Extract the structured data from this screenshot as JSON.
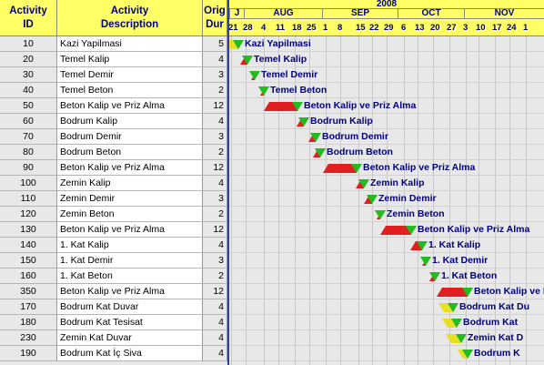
{
  "headers": {
    "id": [
      "Activity",
      "ID"
    ],
    "desc": [
      "Activity",
      "Description"
    ],
    "dur": [
      "Orig",
      "Dur"
    ]
  },
  "timeline": {
    "year": "2008",
    "months": [
      "J",
      "AUG",
      "SEP",
      "OCT",
      "NOV"
    ],
    "ticks": [
      "21",
      "28",
      "4",
      "11",
      "18",
      "25",
      "1",
      "8",
      "15",
      "22",
      "29",
      "6",
      "13",
      "20",
      "27",
      "3",
      "10",
      "17",
      "24",
      "1"
    ]
  },
  "rows": [
    {
      "id": "10",
      "desc": "Kazi Yapilmasi",
      "dur": "5",
      "label": "Kazi Yapilmasi"
    },
    {
      "id": "20",
      "desc": "Temel Kalip",
      "dur": "4",
      "label": "Temel Kalip"
    },
    {
      "id": "30",
      "desc": "Temel Demir",
      "dur": "3",
      "label": "Temel Demir"
    },
    {
      "id": "40",
      "desc": "Temel Beton",
      "dur": "2",
      "label": "Temel Beton"
    },
    {
      "id": "50",
      "desc": "Beton Kalip ve Priz Alma",
      "dur": "12",
      "label": "Beton Kalip ve Priz Alma"
    },
    {
      "id": "60",
      "desc": "Bodrum Kalip",
      "dur": "4",
      "label": "Bodrum Kalip"
    },
    {
      "id": "70",
      "desc": "Bodrum Demir",
      "dur": "3",
      "label": "Bodrum Demir"
    },
    {
      "id": "80",
      "desc": "Bodrum Beton",
      "dur": "2",
      "label": "Bodrum Beton"
    },
    {
      "id": "90",
      "desc": "Beton Kalip ve Priz Alma",
      "dur": "12",
      "label": "Beton Kalip ve Priz Alma"
    },
    {
      "id": "100",
      "desc": "Zemin Kalip",
      "dur": "4",
      "label": "Zemin Kalip"
    },
    {
      "id": "110",
      "desc": "Zemin Demir",
      "dur": "3",
      "label": "Zemin Demir"
    },
    {
      "id": "120",
      "desc": "Zemin Beton",
      "dur": "2",
      "label": "Zemin Beton"
    },
    {
      "id": "130",
      "desc": "Beton Kalip ve Priz Alma",
      "dur": "12",
      "label": "Beton Kalip ve Priz Alma"
    },
    {
      "id": "140",
      "desc": "1. Kat Kalip",
      "dur": "4",
      "label": "1. Kat Kalip"
    },
    {
      "id": "150",
      "desc": "1. Kat Demir",
      "dur": "3",
      "label": "1. Kat Demir"
    },
    {
      "id": "160",
      "desc": "1. Kat Beton",
      "dur": "2",
      "label": "1. Kat Beton"
    },
    {
      "id": "350",
      "desc": "Beton Kalip ve Priz Alma",
      "dur": "12",
      "label": "Beton Kalip ve F"
    },
    {
      "id": "170",
      "desc": "Bodrum Kat Duvar",
      "dur": "4",
      "label": "Bodrum Kat Du"
    },
    {
      "id": "180",
      "desc": "Bodrum Kat Tesisat",
      "dur": "4",
      "label": "Bodrum Kat"
    },
    {
      "id": "230",
      "desc": "Zemin Kat Duvar",
      "dur": "4",
      "label": "Zemin Kat D"
    },
    {
      "id": "190",
      "desc": "Bodrum Kat İç Siva",
      "dur": "4",
      "label": "Bodrum K"
    }
  ],
  "colors": {
    "header_bg": "#ffff66",
    "header_text": "#000080",
    "bar_red": "#e02020",
    "finish_green": "#22bb22",
    "finish_yellow": "#e8e020",
    "separator": "#3040a0"
  }
}
